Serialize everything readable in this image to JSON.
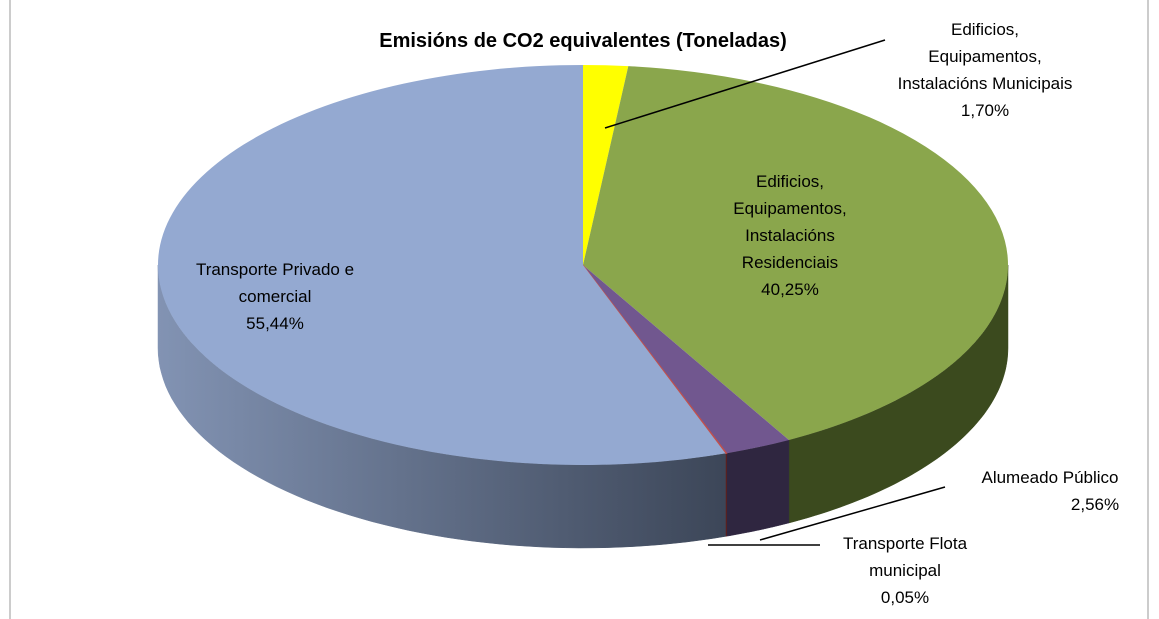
{
  "chart_data": {
    "type": "pie",
    "title": "Emisións de CO2 equivalentes (Toneladas)",
    "categories": [
      "Edificios, Equipamentos, Instalacións Municipais",
      "Edificios, Equipamentos, Instalacións Residenciais",
      "Alumeado Público",
      "Transporte Flota municipal",
      "Transporte Privado e comercial"
    ],
    "values": [
      1.7,
      40.25,
      2.56,
      0.05,
      55.44
    ],
    "value_labels": [
      "1,70%",
      "40,25%",
      "2,56%",
      "0,05%",
      "55,44%"
    ],
    "colors": [
      "#ffff00",
      "#8aa64c",
      "#71578f",
      "#c0504d",
      "#94a9d1"
    ]
  }
}
